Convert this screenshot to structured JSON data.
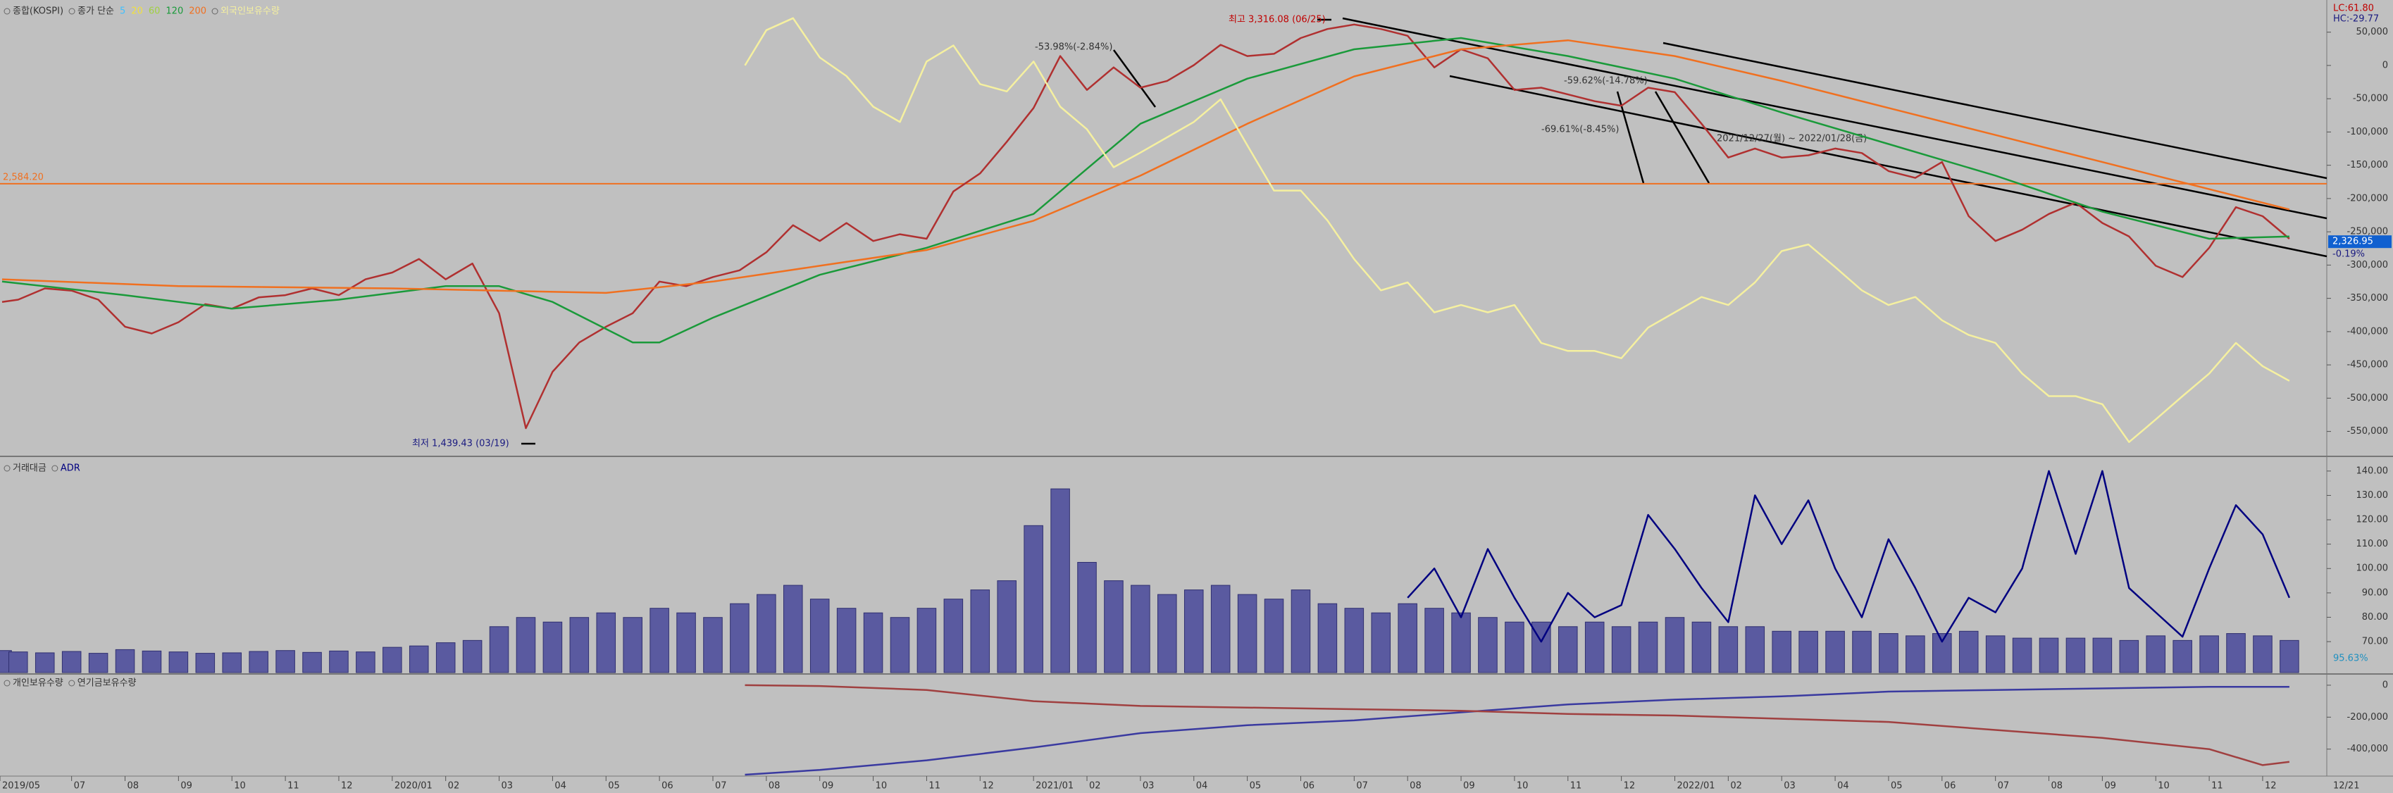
{
  "chart_data": [
    {
      "type": "line",
      "legend_prefix": "종가 단순",
      "ma_extra": [
        {
          "name": "5",
          "color": "#40c0ff"
        },
        {
          "name": "20",
          "color": "#f0e040"
        },
        {
          "name": "60",
          "color": "#a0d040"
        }
      ],
      "xlim": [
        0.66,
        44.2
      ],
      "ylim": [
        1400,
        3380
      ],
      "y2lim": [
        -579000,
        92000
      ],
      "y2ticks": [
        {
          "value": 50000,
          "label": "50,000"
        },
        0,
        {
          "value": -50000,
          "label": "-50,000"
        },
        {
          "value": -100000,
          "label": "-100,000"
        },
        {
          "value": -150000,
          "label": "-150,000"
        },
        {
          "value": -200000,
          "label": "-200,000"
        },
        {
          "value": -250000,
          "label": "-250,000"
        },
        {
          "value": -300000,
          "label": "-300,000"
        },
        {
          "value": -350000,
          "label": "-350,000"
        },
        {
          "value": -400000,
          "label": "-400,000"
        },
        {
          "value": -450000,
          "label": "-450,000"
        },
        {
          "value": -500000,
          "label": "-500,000"
        },
        {
          "value": -550000,
          "label": "-550,000"
        }
      ],
      "grid": false,
      "hline": {
        "value": 2584.2,
        "label": "2,584.20",
        "color": "#f07020"
      },
      "last_price": {
        "value": 2326.95,
        "label": "2,326.95"
      },
      "last_change": "-0.19%",
      "corner_labels": [
        "LC:61.80",
        "HC:-29.77"
      ],
      "annotations": [
        "최고 3,316.08 (06/25)",
        "최저 1,439.43 (03/19)",
        "-53.98%(-2.84%)",
        "-59.62%(-14.78%)",
        "-69.61%(-8.45%)",
        "2021/12/27(월) ~ 2022/01/28(금)"
      ],
      "series": [
        {
          "name": "종합(KOSPI)",
          "color": "#b03030",
          "x": [
            0.7,
            1,
            1.5,
            2,
            2.5,
            3,
            3.5,
            4,
            4.5,
            5,
            5.5,
            6,
            6.5,
            7,
            7.5,
            8,
            8.5,
            9,
            9.5,
            10,
            10.5,
            11,
            11.5,
            12,
            12.5,
            13,
            13.5,
            14,
            14.5,
            15,
            15.5,
            16,
            16.5,
            17,
            17.5,
            18,
            18.5,
            19,
            19.5,
            20,
            20.5,
            21,
            21.5,
            22,
            22.5,
            23,
            23.5,
            24,
            24.5,
            25,
            25.5,
            26,
            26.5,
            27,
            27.5,
            28,
            28.5,
            29,
            29.5,
            30,
            30.5,
            31,
            31.5,
            32,
            32.5,
            33,
            33.5,
            34,
            34.5,
            35,
            35.5,
            36,
            36.5,
            37,
            37.5,
            38,
            38.5,
            39,
            39.5,
            40,
            40.5,
            41,
            41.5,
            42,
            42.5,
            43,
            43.5
          ],
          "values": [
            2060,
            2070,
            2120,
            2110,
            2070,
            1950,
            1920,
            1970,
            2050,
            2030,
            2080,
            2090,
            2120,
            2090,
            2160,
            2190,
            2250,
            2160,
            2230,
            2010,
            1500,
            1750,
            1880,
            1950,
            2010,
            2150,
            2130,
            2170,
            2200,
            2280,
            2400,
            2330,
            2410,
            2330,
            2360,
            2340,
            2550,
            2630,
            2770,
            2920,
            3150,
            3000,
            3100,
            3010,
            3040,
            3110,
            3200,
            3150,
            3160,
            3230,
            3270,
            3290,
            3270,
            3240,
            3100,
            3180,
            3140,
            3000,
            3010,
            2980,
            2950,
            2930,
            3010,
            2990,
            2850,
            2700,
            2740,
            2700,
            2710,
            2740,
            2720,
            2640,
            2610,
            2680,
            2440,
            2330,
            2380,
            2450,
            2500,
            2410,
            2350,
            2220,
            2170,
            2300,
            2480,
            2440,
            2340
          ]
        },
        {
          "name": "120",
          "color": "#1a9a3a",
          "x": [
            0.7,
            3,
            5,
            7,
            9,
            10,
            11,
            12,
            12.5,
            13,
            14,
            16,
            18,
            20,
            21,
            22,
            24,
            26,
            28,
            30,
            32,
            34,
            36,
            38,
            40,
            42,
            43.5
          ],
          "values": [
            2150,
            2090,
            2030,
            2070,
            2130,
            2130,
            2060,
            1940,
            1880,
            1880,
            1990,
            2180,
            2300,
            2450,
            2650,
            2850,
            3050,
            3180,
            3230,
            3150,
            3050,
            2900,
            2760,
            2620,
            2460,
            2340,
            2350
          ]
        },
        {
          "name": "200",
          "color": "#f07020",
          "x": [
            0.7,
            4,
            8,
            10,
            12,
            14,
            16,
            18,
            20,
            22,
            24,
            26,
            28,
            30,
            32,
            34,
            36,
            38,
            40,
            42,
            43.5
          ],
          "values": [
            2160,
            2130,
            2120,
            2110,
            2100,
            2150,
            2220,
            2290,
            2420,
            2620,
            2850,
            3060,
            3180,
            3220,
            3150,
            3040,
            2920,
            2800,
            2680,
            2560,
            2470
          ]
        },
        {
          "name": "외국인보유수량",
          "color": "#f5f0a0",
          "axis": "y2",
          "x": [
            14.6,
            15,
            15.5,
            16,
            16.5,
            17,
            17.5,
            18,
            18.5,
            19,
            19.5,
            20,
            20.5,
            21,
            21.5,
            22,
            22.5,
            23,
            23.5,
            24,
            24.5,
            25,
            25.5,
            26,
            26.5,
            27,
            27.5,
            28,
            28.5,
            29,
            29.5,
            30,
            30.5,
            31,
            31.5,
            32,
            32.5,
            33,
            33.5,
            34,
            34.5,
            35,
            35.5,
            36,
            36.5,
            37,
            37.5,
            38,
            38.5,
            39,
            39.5,
            40,
            40.5,
            41,
            41.5,
            42,
            42.5,
            43,
            43.5
          ],
          "values": [
            0,
            53000,
            71000,
            12000,
            -16000,
            -62000,
            -85000,
            6000,
            30000,
            -28000,
            -39000,
            6000,
            -62000,
            -96000,
            -153000,
            -131000,
            -108000,
            -85000,
            -51000,
            -120000,
            -188000,
            -188000,
            -233000,
            -291000,
            -338000,
            -326000,
            -371000,
            -360000,
            -371000,
            -360000,
            -417000,
            -429000,
            -429000,
            -440000,
            -394000,
            -371000,
            -348000,
            -360000,
            -326000,
            -279000,
            -269000,
            -303000,
            -338000,
            -360000,
            -348000,
            -383000,
            -405000,
            -417000,
            -463000,
            -497000,
            -497000,
            -509000,
            -566000,
            -532000,
            -497000,
            -463000,
            -417000,
            -452000,
            -474000
          ]
        }
      ]
    },
    {
      "type": "bar",
      "xlim": [
        0.66,
        44.2
      ],
      "ylim": [
        0,
        46
      ],
      "y2lim": [
        57.3,
        144
      ],
      "y2ticks": [
        {
          "value": 140,
          "label": "140.00"
        },
        {
          "value": 130,
          "label": "130.00"
        },
        {
          "value": 120,
          "label": "120.00"
        },
        {
          "value": 110,
          "label": "110.00"
        },
        {
          "value": 100,
          "label": "100.00"
        },
        {
          "value": 90,
          "label": "90.00"
        },
        {
          "value": 80,
          "label": "80.00"
        },
        {
          "value": 70,
          "label": "70.00"
        }
      ],
      "last_labels": [
        "95.63%"
      ],
      "series": [
        {
          "name": "거래대금",
          "color": "#5a5aa0",
          "x": [
            0.7,
            1,
            1.5,
            2,
            2.5,
            3,
            3.5,
            4,
            4.5,
            5,
            5.5,
            6,
            6.5,
            7,
            7.5,
            8,
            8.5,
            9,
            9.5,
            10,
            10.5,
            11,
            11.5,
            12,
            12.5,
            13,
            13.5,
            14,
            14.5,
            15,
            15.5,
            16,
            16.5,
            17,
            17.5,
            18,
            18.5,
            19,
            19.5,
            20,
            20.5,
            21,
            21.5,
            22,
            22.5,
            23,
            23.5,
            24,
            24.5,
            25,
            25.5,
            26,
            26.5,
            27,
            27.5,
            28,
            28.5,
            29,
            29.5,
            30,
            30.5,
            31,
            31.5,
            32,
            32.5,
            33,
            33.5,
            34,
            34.5,
            35,
            35.5,
            36,
            36.5,
            37,
            37.5,
            38,
            38.5,
            39,
            39.5,
            40,
            40.5,
            41,
            41.5,
            42,
            42.5,
            43,
            43.5
          ],
          "values": [
            4.8,
            4.5,
            4.3,
            4.6,
            4.2,
            5.0,
            4.7,
            4.5,
            4.2,
            4.3,
            4.6,
            4.8,
            4.4,
            4.7,
            4.5,
            5.5,
            5.8,
            6.5,
            7,
            10,
            12,
            11,
            12,
            13,
            12,
            14,
            13,
            12,
            15,
            17,
            19,
            16,
            14,
            13,
            12,
            14,
            16,
            18,
            20,
            32,
            40,
            24,
            20,
            19,
            17,
            18,
            19,
            17,
            16,
            18,
            15,
            14,
            13,
            15,
            14,
            13,
            12,
            11,
            11,
            10,
            11,
            10,
            11,
            12,
            11,
            10,
            10,
            9,
            9,
            9,
            9,
            8.5,
            8,
            8.5,
            9,
            8,
            7.5,
            7.5,
            7.5,
            7.5,
            7,
            8,
            7,
            8,
            8.5,
            8,
            7
          ]
        },
        {
          "name": "ADR",
          "color": "#000080",
          "axis": "y2",
          "type": "line",
          "x": [
            27,
            27.5,
            28,
            28.5,
            29,
            29.5,
            30,
            30.5,
            31,
            31.5,
            32,
            32.5,
            33,
            33.5,
            34,
            34.5,
            35,
            35.5,
            36,
            36.5,
            37,
            37.5,
            38,
            38.5,
            39,
            39.5,
            40,
            40.5,
            41,
            41.5,
            42,
            42.5,
            43,
            43.5
          ],
          "values": [
            88,
            100,
            80,
            108,
            88,
            70,
            90,
            80,
            85,
            122,
            108,
            92,
            78,
            130,
            110,
            128,
            100,
            80,
            112,
            92,
            70,
            88,
            82,
            100,
            140,
            106,
            140,
            92,
            82,
            72,
            100,
            126,
            114,
            88
          ]
        }
      ]
    },
    {
      "type": "line",
      "xlim": [
        0.66,
        44.2
      ],
      "ylim": [
        -560000,
        57000
      ],
      "yticks": [
        0,
        {
          "value": -200000,
          "label": "-200,000"
        },
        {
          "value": -400000,
          "label": "-400,000"
        }
      ],
      "xticks": [
        {
          "value": 0.66,
          "label": "2019/05"
        },
        {
          "value": 2,
          "label": "07"
        },
        {
          "value": 3,
          "label": "08"
        },
        {
          "value": 4,
          "label": "09"
        },
        {
          "value": 5,
          "label": "10"
        },
        {
          "value": 6,
          "label": "11"
        },
        {
          "value": 7,
          "label": "12"
        },
        {
          "value": 8,
          "label": "2020/01"
        },
        {
          "value": 9,
          "label": "02"
        },
        {
          "value": 10,
          "label": "03"
        },
        {
          "value": 11,
          "label": "04"
        },
        {
          "value": 12,
          "label": "05"
        },
        {
          "value": 13,
          "label": "06"
        },
        {
          "value": 14,
          "label": "07"
        },
        {
          "value": 15,
          "label": "08"
        },
        {
          "value": 16,
          "label": "09"
        },
        {
          "value": 17,
          "label": "10"
        },
        {
          "value": 18,
          "label": "11"
        },
        {
          "value": 19,
          "label": "12"
        },
        {
          "value": 20,
          "label": "2021/01"
        },
        {
          "value": 21,
          "label": "02"
        },
        {
          "value": 22,
          "label": "03"
        },
        {
          "value": 23,
          "label": "04"
        },
        {
          "value": 24,
          "label": "05"
        },
        {
          "value": 25,
          "label": "06"
        },
        {
          "value": 26,
          "label": "07"
        },
        {
          "value": 27,
          "label": "08"
        },
        {
          "value": 28,
          "label": "09"
        },
        {
          "value": 29,
          "label": "10"
        },
        {
          "value": 30,
          "label": "11"
        },
        {
          "value": 31,
          "label": "12"
        },
        {
          "value": 32,
          "label": "2022/01"
        },
        {
          "value": 33,
          "label": "02"
        },
        {
          "value": 34,
          "label": "03"
        },
        {
          "value": 35,
          "label": "04"
        },
        {
          "value": 36,
          "label": "05"
        },
        {
          "value": 37,
          "label": "06"
        },
        {
          "value": 38,
          "label": "07"
        },
        {
          "value": 39,
          "label": "08"
        },
        {
          "value": 40,
          "label": "09"
        },
        {
          "value": 41,
          "label": "10"
        },
        {
          "value": 42,
          "label": "11"
        },
        {
          "value": 43,
          "label": "12"
        }
      ],
      "cursor_label": "12/21",
      "series": [
        {
          "name": "개인보유수량",
          "color": "#3a3aa0",
          "x": [
            14.6,
            16,
            18,
            20,
            22,
            24,
            26,
            28,
            30,
            32,
            34,
            36,
            38,
            40,
            42,
            43.5
          ],
          "values": [
            -560000,
            -530000,
            -470000,
            -390000,
            -300000,
            -250000,
            -220000,
            -170000,
            -120000,
            -90000,
            -70000,
            -40000,
            -30000,
            -20000,
            -10000,
            -10000
          ]
        },
        {
          "name": "연기금보유수량",
          "color": "#a04040",
          "x": [
            14.6,
            16,
            18,
            20,
            22,
            24,
            26,
            28,
            30,
            32,
            34,
            36,
            38,
            40,
            42,
            43,
            43.5
          ],
          "values": [
            0,
            -5000,
            -30000,
            -100000,
            -130000,
            -140000,
            -150000,
            -160000,
            -180000,
            -190000,
            -210000,
            -230000,
            -280000,
            -330000,
            -400000,
            -500000,
            -480000
          ]
        }
      ]
    }
  ]
}
